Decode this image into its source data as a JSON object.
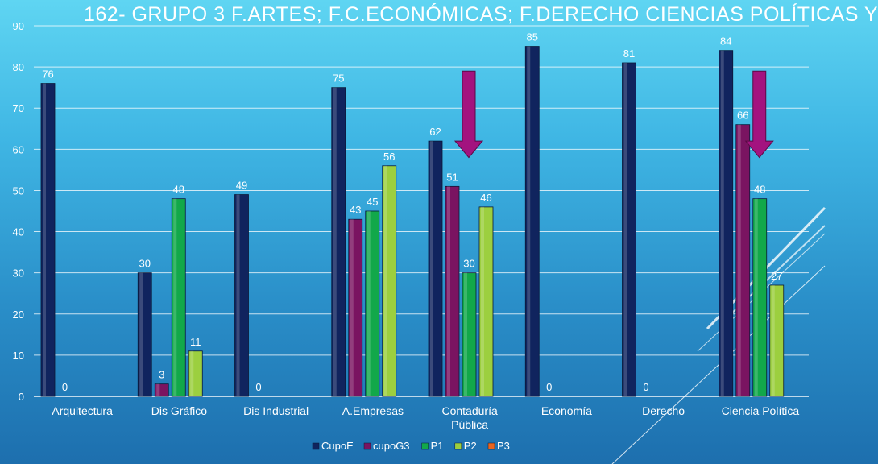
{
  "slide": {
    "title": "162-  GRUPO 3 F.ARTES;  F.C.ECONÓMICAS;  F.DERECHO CIENCIAS POLÍTICAS Y"
  },
  "colors": {
    "CupoE": "#10245e",
    "cupoG3": "#7a1461",
    "P1": "#12a84a",
    "P2": "#9ccf3f",
    "P3": "#e8641f",
    "arrow": "#a3137f"
  },
  "chart_data": {
    "type": "bar",
    "title": "",
    "xlabel": "",
    "ylabel": "",
    "ylim": [
      0,
      90
    ],
    "yticks": [
      0,
      10,
      20,
      30,
      40,
      50,
      60,
      70,
      80,
      90
    ],
    "grid": true,
    "legend_position": "bottom",
    "categories": [
      "Arquitectura",
      "Dis Gráfico",
      "Dis Industrial",
      "A.Empresas",
      "Contaduría Pública",
      "Economía",
      "Derecho",
      "Ciencia Política"
    ],
    "category_lines": [
      [
        "Arquitectura"
      ],
      [
        "Dis Gráfico"
      ],
      [
        "Dis Industrial"
      ],
      [
        "A.Empresas"
      ],
      [
        "Contaduría",
        "Pública"
      ],
      [
        "Economía"
      ],
      [
        "Derecho"
      ],
      [
        "Ciencia Política"
      ]
    ],
    "series": [
      {
        "name": "CupoE",
        "values": [
          76,
          30,
          49,
          75,
          62,
          85,
          81,
          84
        ]
      },
      {
        "name": "cupoG3",
        "values": [
          0,
          3,
          0,
          43,
          51,
          0,
          0,
          66
        ]
      },
      {
        "name": "P1",
        "values": [
          null,
          48,
          null,
          45,
          30,
          null,
          null,
          48
        ]
      },
      {
        "name": "P2",
        "values": [
          null,
          11,
          null,
          56,
          46,
          null,
          null,
          27
        ]
      },
      {
        "name": "P3",
        "values": [
          null,
          null,
          null,
          null,
          null,
          null,
          null,
          null
        ]
      }
    ],
    "annotations": [
      {
        "type": "down-arrow",
        "category": "Contaduría Pública"
      },
      {
        "type": "down-arrow",
        "category": "Ciencia Política"
      }
    ]
  }
}
